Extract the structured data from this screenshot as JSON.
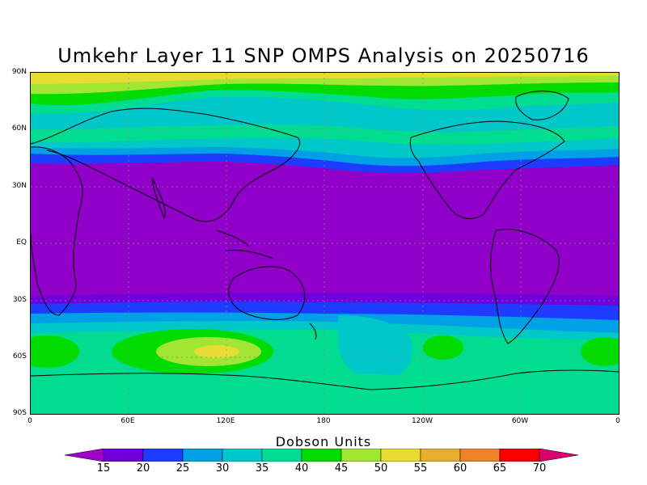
{
  "title": "Umkehr Layer 11 SNP OMPS Analysis on 20250716",
  "y_axis_labels": [
    "90N",
    "60N",
    "30N",
    "EQ",
    "30S",
    "60S",
    "90S"
  ],
  "x_axis_labels": [
    "0",
    "60E",
    "120E",
    "180",
    "120W",
    "60W",
    "0"
  ],
  "colorbar": {
    "title": "Dobson Units",
    "ticks": [
      "15",
      "20",
      "25",
      "30",
      "35",
      "40",
      "45",
      "50",
      "55",
      "60",
      "65",
      "70"
    ],
    "colors": [
      "#a000c8",
      "#6f00dc",
      "#1e3cff",
      "#00a0e6",
      "#00c8c8",
      "#00dc90",
      "#00dc00",
      "#a0e632",
      "#e6dc32",
      "#e6af2d",
      "#f08228",
      "#fa0000",
      "#dc0070"
    ]
  }
}
